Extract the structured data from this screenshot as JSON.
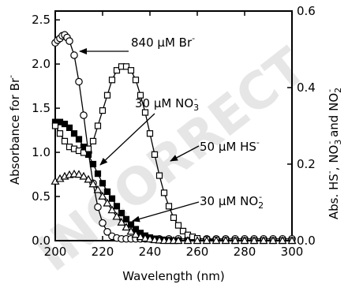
{
  "chart_data": {
    "type": "line",
    "xlabel": "Wavelength (nm)",
    "ylabel_left": "Absorbance for Br",
    "ylabel_left_sup": "-",
    "ylabel_right": [
      {
        "text": "Abs.  HS",
        "sup": "-"
      },
      {
        "text": ", NO",
        "sub": "3",
        "sup": "-"
      },
      {
        "text": " and NO",
        "sub": "2",
        "sup": "-"
      }
    ],
    "xlim": [
      200,
      300
    ],
    "ylim_left": [
      0,
      2.6
    ],
    "ylim_right": [
      0,
      0.6
    ],
    "xticks": [
      200,
      220,
      240,
      260,
      280,
      300
    ],
    "yticks_left": [
      0.0,
      0.5,
      1.0,
      1.5,
      2.0,
      2.5
    ],
    "yticks_right": [
      0.0,
      0.2,
      0.4,
      0.6
    ],
    "series": [
      {
        "name": "840 μM Br-",
        "axis": "left",
        "marker": "circle",
        "fill": "#ffffff",
        "x": [
          200,
          201,
          202,
          203,
          204,
          205,
          206,
          208,
          210,
          212,
          214,
          216,
          218,
          220,
          222,
          224,
          226,
          228,
          230,
          232,
          234,
          236,
          238,
          240,
          244,
          248,
          252,
          256,
          260,
          264,
          268,
          272,
          276,
          280,
          284,
          288,
          292,
          296,
          300
        ],
        "y": [
          2.24,
          2.27,
          2.29,
          2.32,
          2.33,
          2.3,
          2.26,
          2.1,
          1.8,
          1.42,
          1.0,
          0.65,
          0.38,
          0.2,
          0.1,
          0.05,
          0.03,
          0.02,
          0.02,
          0.02,
          0.02,
          0.02,
          0.02,
          0.02,
          0.02,
          0.02,
          0.02,
          0.02,
          0.02,
          0.02,
          0.02,
          0.02,
          0.02,
          0.02,
          0.02,
          0.02,
          0.02,
          0.02,
          0.02
        ]
      },
      {
        "name": "30 μM NO3-",
        "axis": "right",
        "marker": "square",
        "fill": "#000000",
        "x": [
          200,
          202,
          204,
          206,
          208,
          210,
          212,
          214,
          216,
          218,
          220,
          222,
          224,
          226,
          228,
          230,
          232,
          234,
          236,
          238,
          240,
          242,
          244,
          246,
          248,
          250,
          252,
          256,
          260,
          264,
          268,
          272,
          276,
          280,
          284,
          288,
          292,
          296,
          300
        ],
        "y": [
          0.31,
          0.31,
          0.305,
          0.295,
          0.28,
          0.265,
          0.245,
          0.225,
          0.2,
          0.175,
          0.15,
          0.128,
          0.11,
          0.09,
          0.072,
          0.056,
          0.042,
          0.03,
          0.02,
          0.013,
          0.008,
          0.005,
          0.003,
          0.002,
          0.001,
          0.0,
          0.0,
          0.0,
          0.0,
          0.0,
          0.0,
          0.0,
          0.0,
          0.0,
          0.0,
          0.0,
          0.0,
          0.0,
          0.0
        ]
      },
      {
        "name": "50 μM HS-",
        "axis": "right",
        "marker": "square",
        "fill": "#ffffff",
        "x": [
          200,
          202,
          204,
          206,
          208,
          210,
          212,
          214,
          216,
          218,
          220,
          222,
          224,
          226,
          228,
          230,
          232,
          234,
          236,
          238,
          240,
          242,
          244,
          246,
          248,
          250,
          252,
          254,
          256,
          258,
          260,
          264,
          268,
          272,
          276,
          280,
          284,
          288,
          292,
          296,
          300
        ],
        "y": [
          0.3,
          0.28,
          0.26,
          0.245,
          0.24,
          0.235,
          0.23,
          0.24,
          0.26,
          0.3,
          0.34,
          0.38,
          0.42,
          0.445,
          0.455,
          0.455,
          0.445,
          0.42,
          0.38,
          0.335,
          0.28,
          0.225,
          0.17,
          0.125,
          0.09,
          0.06,
          0.04,
          0.025,
          0.015,
          0.01,
          0.006,
          0.003,
          0.002,
          0.001,
          0.0,
          0.0,
          0.0,
          0.0,
          0.0,
          0.0,
          0.0
        ]
      },
      {
        "name": "30 μM NO2-",
        "axis": "right",
        "marker": "triangle",
        "fill": "#ffffff",
        "x": [
          200,
          202,
          204,
          206,
          208,
          210,
          212,
          214,
          216,
          218,
          220,
          222,
          224,
          226,
          228,
          230,
          232,
          234,
          236,
          238,
          240,
          242,
          244,
          246,
          248,
          250,
          252,
          256,
          260,
          264,
          268,
          272,
          276,
          280,
          284,
          288,
          292,
          296,
          300
        ],
        "y": [
          0.155,
          0.162,
          0.168,
          0.172,
          0.174,
          0.173,
          0.168,
          0.16,
          0.148,
          0.133,
          0.116,
          0.098,
          0.08,
          0.063,
          0.048,
          0.035,
          0.024,
          0.016,
          0.01,
          0.006,
          0.004,
          0.002,
          0.001,
          0.0,
          0.0,
          0.0,
          0.0,
          0.0,
          0.0,
          0.0,
          0.0,
          0.0,
          0.0,
          0.0,
          0.0,
          0.0,
          0.0,
          0.0,
          0.0
        ]
      }
    ],
    "annotations": [
      {
        "text": "840 μM Br",
        "sup": "-"
      },
      {
        "text": "30 μM NO",
        "sub": "3",
        "sup": "-"
      },
      {
        "text": "50 μM HS",
        "sup": "-"
      },
      {
        "text": "30 μM NO",
        "sub": "2",
        "sup": "-"
      }
    ],
    "watermark": "INCORRECT"
  }
}
